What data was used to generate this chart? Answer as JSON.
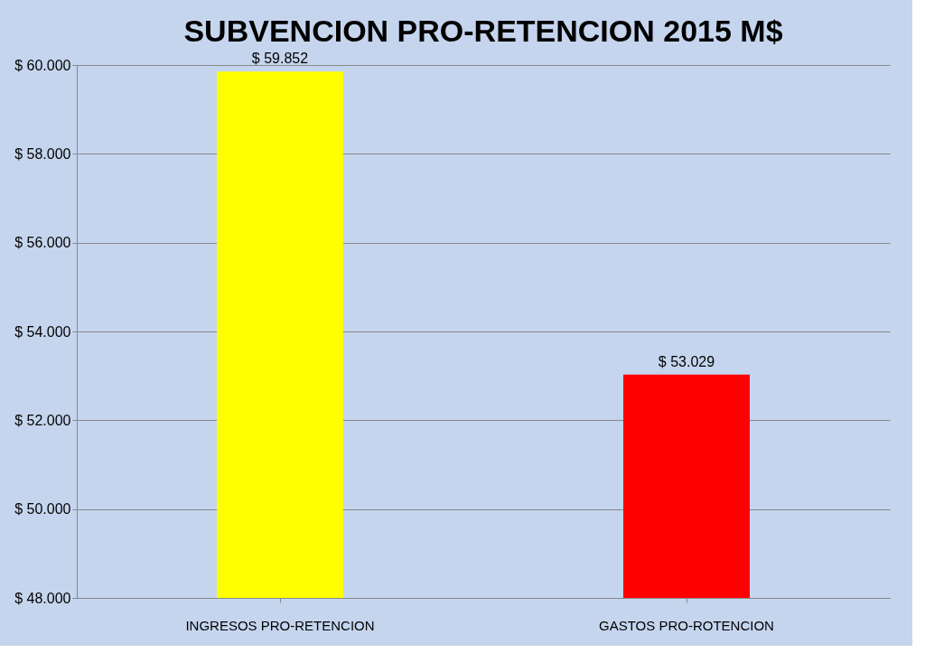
{
  "chart_data": {
    "type": "bar",
    "title": "SUBVENCION PRO-RETENCION 2015 M$",
    "categories": [
      "INGRESOS PRO-RETENCION",
      "GASTOS PRO-ROTENCION"
    ],
    "values": [
      59852,
      53029
    ],
    "colors": [
      "#ffff00",
      "#ff0000"
    ],
    "value_labels": [
      "$ 59.852",
      "$ 53.029"
    ],
    "ylim": [
      48000,
      60000
    ],
    "yticks": [
      {
        "value": 48000,
        "label": "$ 48.000"
      },
      {
        "value": 50000,
        "label": "$ 50.000"
      },
      {
        "value": 52000,
        "label": "$ 52.000"
      },
      {
        "value": 54000,
        "label": "$ 54.000"
      },
      {
        "value": 56000,
        "label": "$ 56.000"
      },
      {
        "value": 58000,
        "label": "$ 58.000"
      },
      {
        "value": 60000,
        "label": "$ 60.000"
      }
    ],
    "grid": "y"
  }
}
